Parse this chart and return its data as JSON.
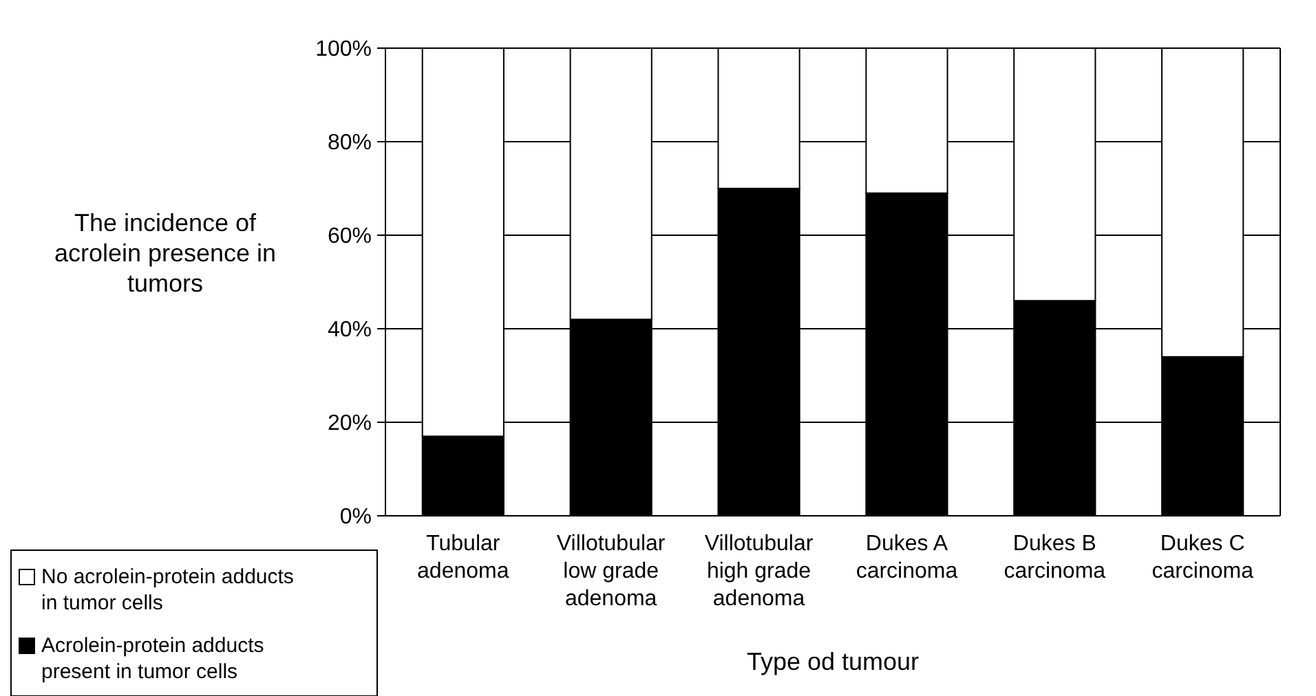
{
  "chart_data": {
    "type": "bar",
    "stacked": true,
    "xlabel": "Type od tumour",
    "ylabel": "The incidence of acrolein presence in tumors",
    "categories": [
      "Tubular adenoma",
      "Villotubular low grade adenoma",
      "Villotubular high grade adenoma",
      "Dukes A carcinoma",
      "Dukes B carcinoma",
      "Dukes C carcinoma"
    ],
    "series": [
      {
        "name": "Acrolein-protein adducts present in tumor cells",
        "color": "#000000",
        "values": [
          17,
          42,
          70,
          69,
          46,
          34
        ]
      },
      {
        "name": "No acrolein-protein adducts in tumor cells",
        "color": "#ffffff",
        "values": [
          83,
          58,
          30,
          31,
          54,
          66
        ]
      }
    ],
    "ylim": [
      0,
      100
    ],
    "yticks": [
      {
        "value": 0,
        "label": "0%"
      },
      {
        "value": 20,
        "label": "20%"
      },
      {
        "value": 40,
        "label": "40%"
      },
      {
        "value": 60,
        "label": "60%"
      },
      {
        "value": 80,
        "label": "80%"
      },
      {
        "value": 100,
        "label": "100%"
      }
    ],
    "grid": "y",
    "legend": "bottom left"
  }
}
